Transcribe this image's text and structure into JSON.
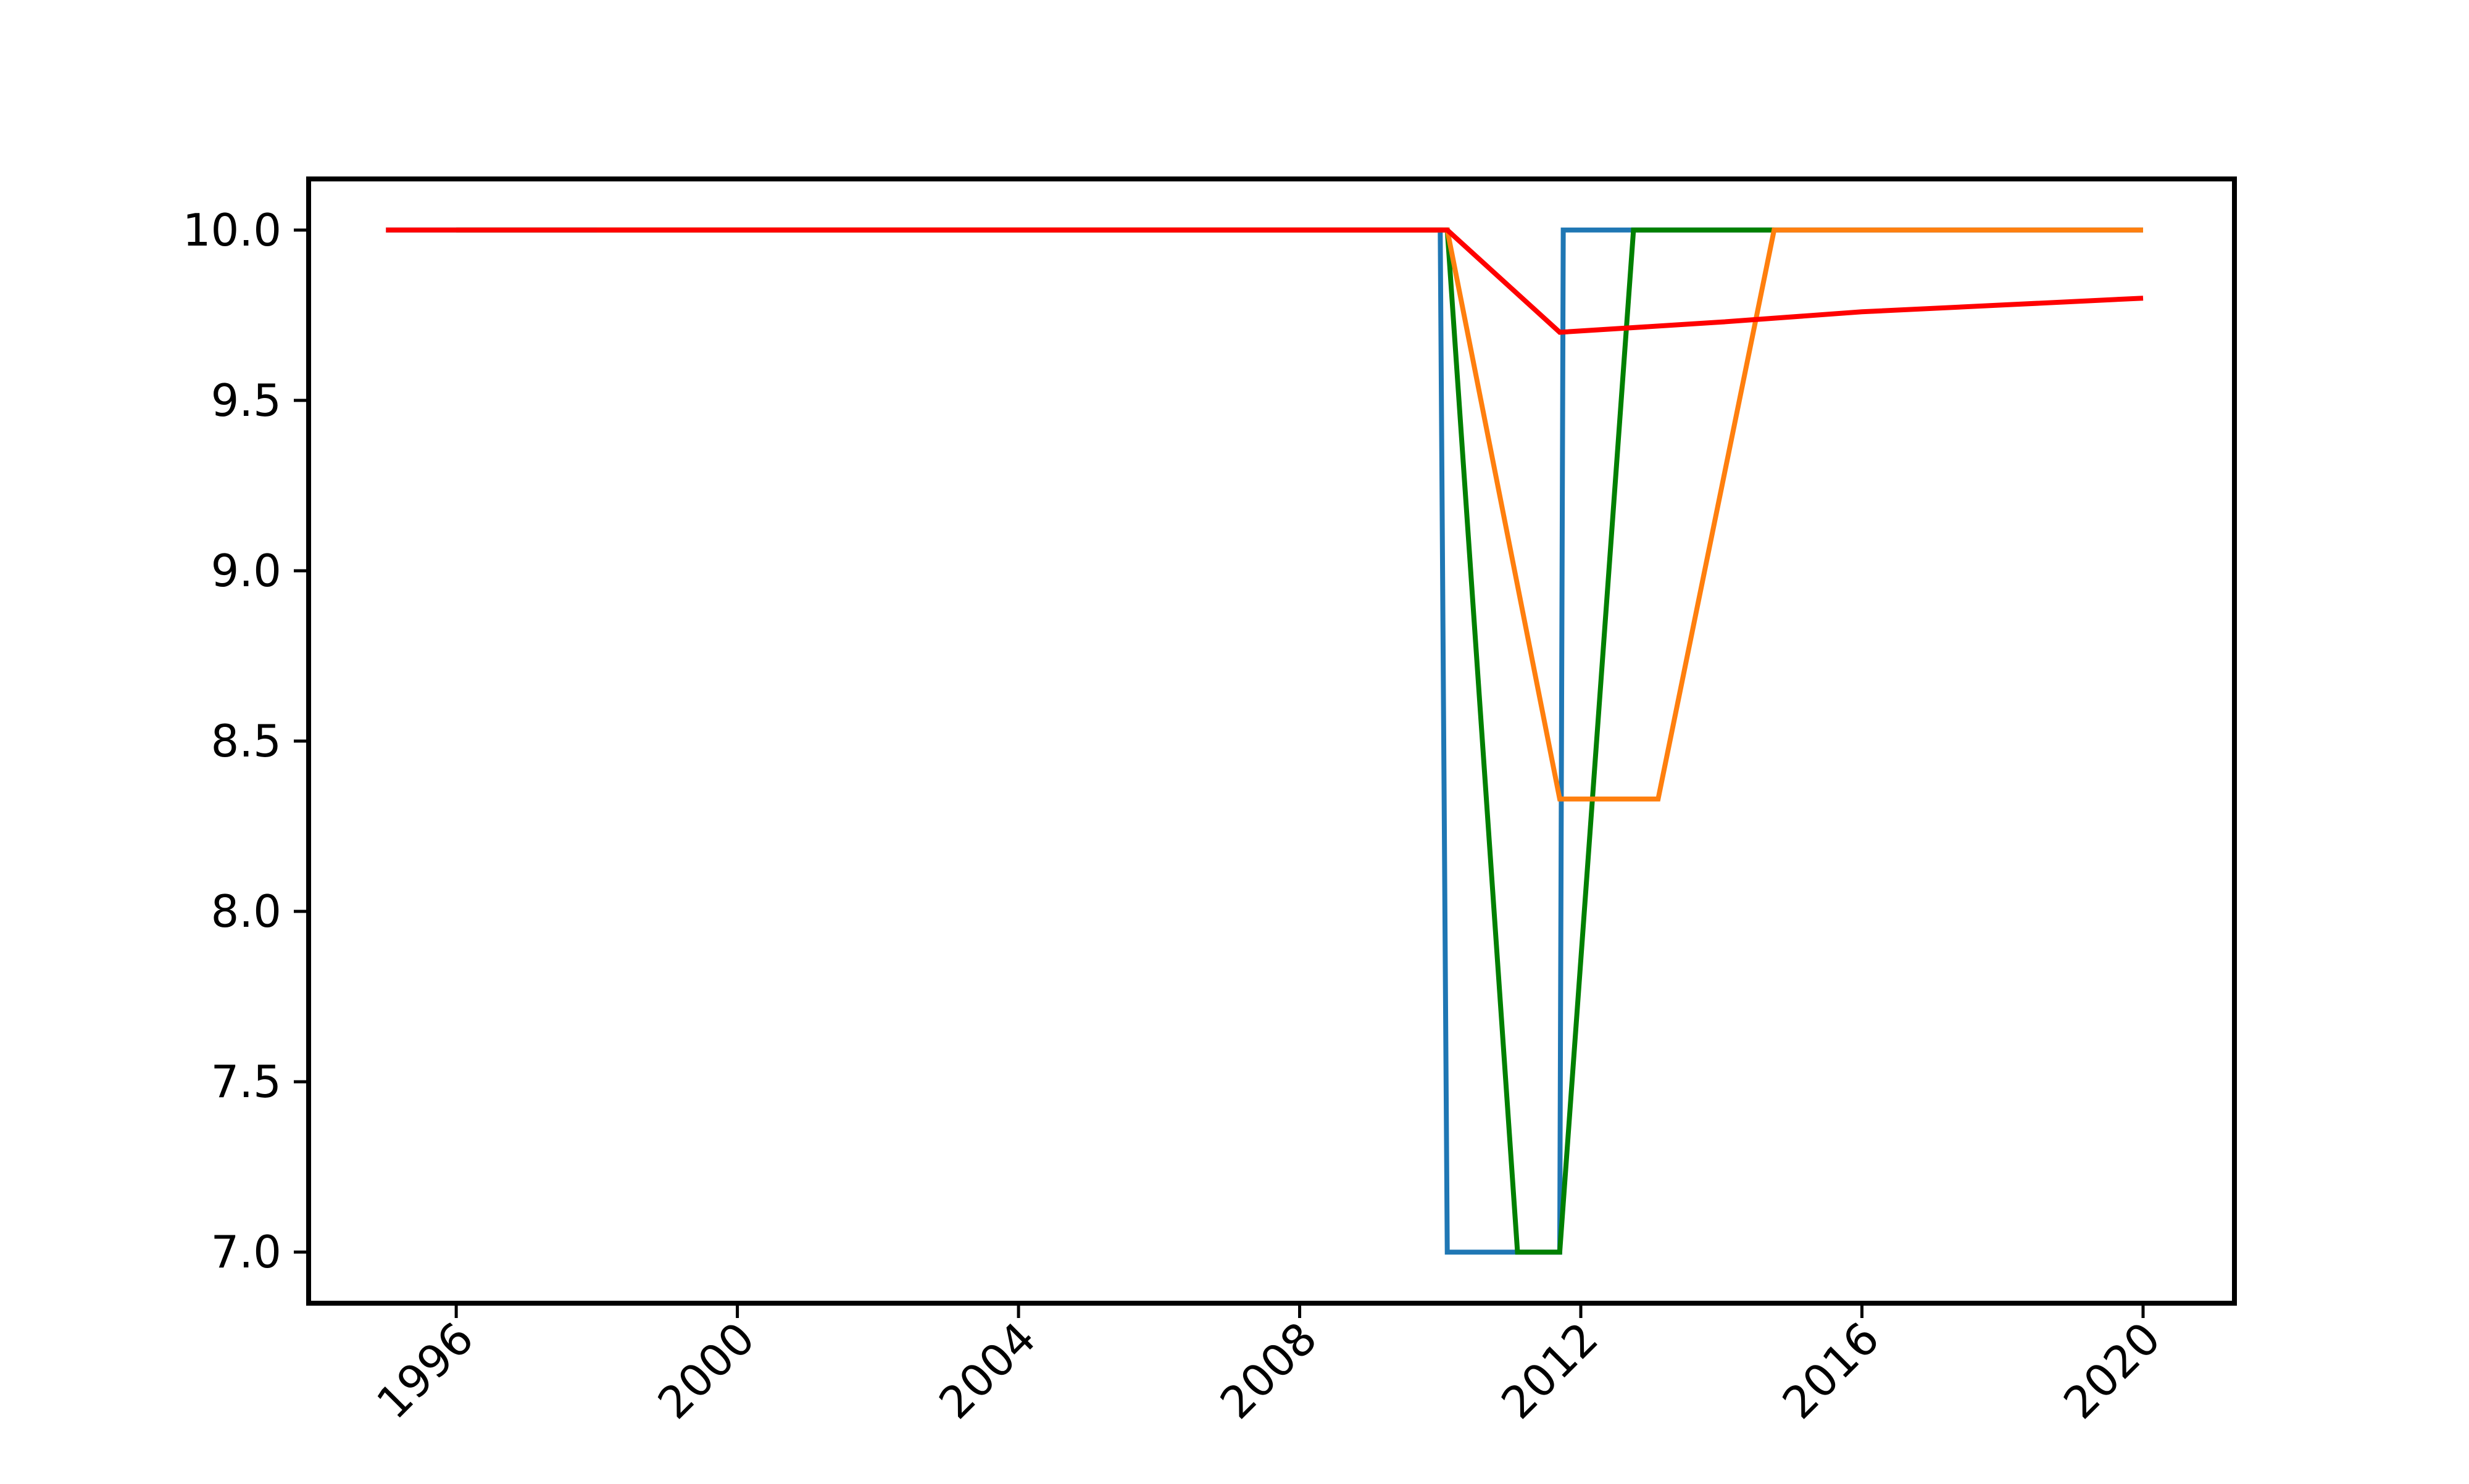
{
  "chart_data": {
    "type": "line",
    "title": "",
    "xlabel": "",
    "ylabel": "",
    "xlim": [
      1993.9,
      2021.3
    ],
    "ylim": [
      6.85,
      10.15
    ],
    "x_ticks": [
      1996,
      2000,
      2004,
      2008,
      2012,
      2016,
      2020
    ],
    "x_tick_labels": [
      "1996",
      "2000",
      "2004",
      "2008",
      "2012",
      "2016",
      "2020"
    ],
    "y_ticks": [
      7.0,
      7.5,
      8.0,
      8.5,
      9.0,
      9.5,
      10.0
    ],
    "y_tick_labels": [
      "7.0",
      "7.5",
      "8.0",
      "8.5",
      "9.0",
      "9.5",
      "10.0"
    ],
    "grid": false,
    "legend": "none",
    "series": [
      {
        "color": "#1f77b4",
        "x": [
          1995.0,
          2010.0,
          2010.1,
          2011.7,
          2011.75,
          2020.0
        ],
        "y": [
          10.0,
          10.0,
          7.0,
          7.0,
          10.0,
          10.0
        ]
      },
      {
        "color": "#008000",
        "x": [
          1996.0,
          2010.1,
          2011.1,
          2011.7,
          2012.75,
          2014.75
        ],
        "y": [
          10.0,
          10.0,
          7.0,
          7.0,
          10.0,
          10.0
        ]
      },
      {
        "color": "#ff7f0e",
        "x": [
          1998.0,
          2010.1,
          2011.7,
          2013.1,
          2014.75,
          2020.0
        ],
        "y": [
          10.0,
          10.0,
          8.33,
          8.33,
          10.0,
          10.0
        ]
      },
      {
        "color": "#ff0000",
        "x": [
          1995.0,
          1996.0,
          2010.1,
          2011.7,
          2014.0,
          2016.0,
          2018.0,
          2020.0
        ],
        "y": [
          10.0,
          10.0,
          10.0,
          9.7,
          9.73,
          9.76,
          9.78,
          9.8
        ]
      }
    ]
  }
}
